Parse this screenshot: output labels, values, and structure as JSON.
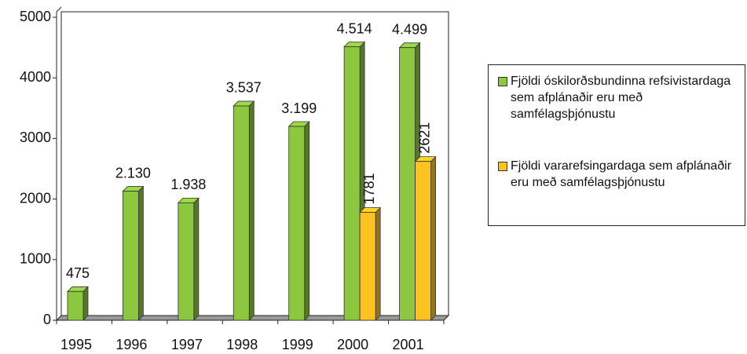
{
  "chart_data": {
    "type": "bar",
    "categories": [
      "1995",
      "1996",
      "1997",
      "1998",
      "1999",
      "2000",
      "2001"
    ],
    "series": [
      {
        "name": "Fjöldi óskilorðsbundinna refsivistardaga sem afplánaðir eru með samfélagsþjónustu",
        "color": "#8dc63f",
        "values": [
          475,
          2130,
          1938,
          3537,
          3199,
          4514,
          4499
        ],
        "value_labels": [
          "475",
          "2.130",
          "1.938",
          "3.537",
          "3.199",
          "4.514",
          "4.499"
        ]
      },
      {
        "name": "Fjöldi vararefsingardaga sem afplánaðir eru með samfélagsþjónustu",
        "color": "#fcc221",
        "values": [
          null,
          null,
          null,
          null,
          null,
          1781,
          2621
        ]
      }
    ],
    "ylim": [
      0,
      5000
    ],
    "yticks": [
      0,
      1000,
      2000,
      3000,
      4000,
      5000
    ],
    "legend": "right"
  }
}
